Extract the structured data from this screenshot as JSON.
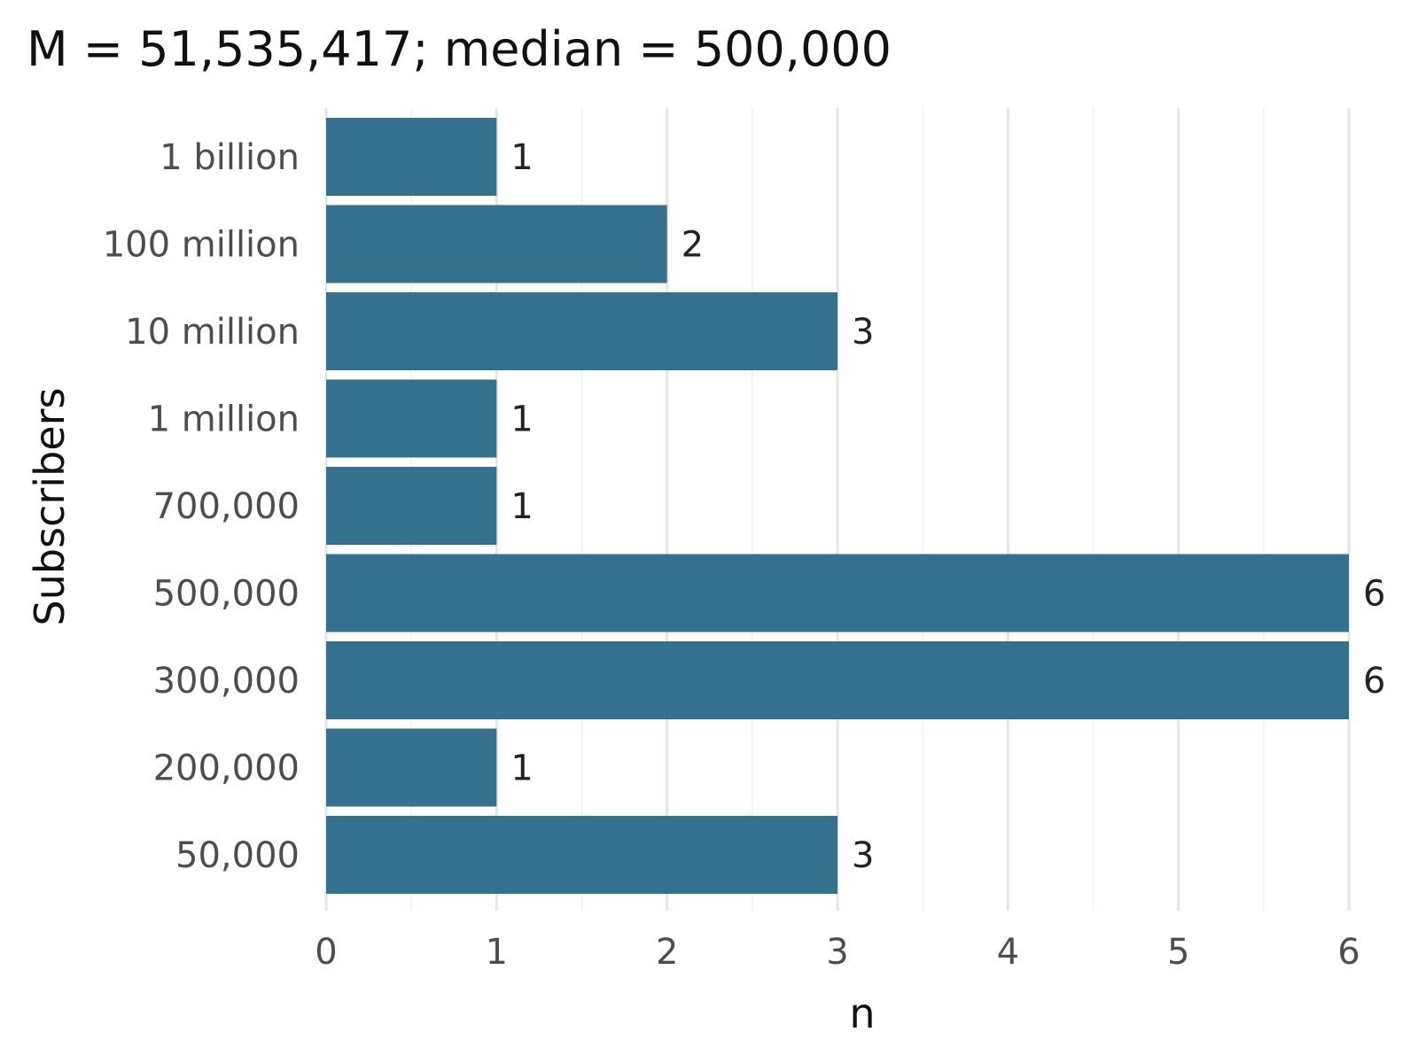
{
  "chart_data": {
    "type": "bar",
    "orientation": "horizontal",
    "title": "M = 51,535,417; median = 500,000",
    "xlabel": "n",
    "ylabel": "Subscribers",
    "categories": [
      "1 billion",
      "100 million",
      "10 million",
      "1 million",
      "700,000",
      "500,000",
      "300,000",
      "200,000",
      "50,000"
    ],
    "values": [
      1,
      2,
      3,
      1,
      1,
      6,
      6,
      1,
      3
    ],
    "data_labels": [
      "1",
      "2",
      "3",
      "1",
      "1",
      "6",
      "6",
      "1",
      "3"
    ],
    "xlim": [
      0,
      6
    ],
    "x_ticks": [
      0,
      1,
      2,
      3,
      4,
      5,
      6
    ],
    "x_tick_labels": [
      "0",
      "1",
      "2",
      "3",
      "4",
      "5",
      "6"
    ],
    "grid": true,
    "bar_color": "#33718f",
    "legend": "none"
  }
}
